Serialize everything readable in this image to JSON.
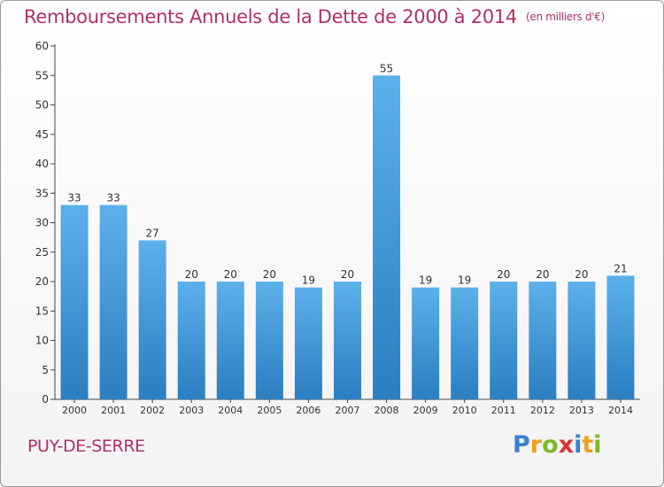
{
  "title": "Remboursements Annuels de la Dette de 2000 à 2014",
  "unit": "(en milliers d'€)",
  "commune": "PUY-DE-SERRE",
  "logo": {
    "letters": [
      "P",
      "r",
      "o",
      "x",
      "i",
      "t",
      "i"
    ],
    "colors": [
      "#3a7fd0",
      "#f0a020",
      "#80b828",
      "#e03030",
      "#3a7fd0",
      "#f0a020",
      "#80b828"
    ]
  },
  "colors": {
    "title": "#b0306a",
    "bar_top": "#5cb0ea",
    "bar_bottom": "#2b7ec0",
    "axis": "#444444"
  },
  "chart_data": {
    "type": "bar",
    "title": "Remboursements Annuels de la Dette de 2000 à 2014",
    "categories": [
      "2000",
      "2001",
      "2002",
      "2003",
      "2004",
      "2005",
      "2006",
      "2007",
      "2008",
      "2009",
      "2010",
      "2011",
      "2012",
      "2013",
      "2014"
    ],
    "values": [
      33,
      33,
      27,
      20,
      20,
      20,
      19,
      20,
      55,
      19,
      19,
      20,
      20,
      20,
      21
    ],
    "ylim": [
      0,
      60
    ],
    "yticks": [
      0,
      5,
      10,
      15,
      20,
      25,
      30,
      35,
      40,
      45,
      50,
      55,
      60
    ],
    "xlabel": "",
    "ylabel": "",
    "grid": false,
    "legend": "none"
  }
}
